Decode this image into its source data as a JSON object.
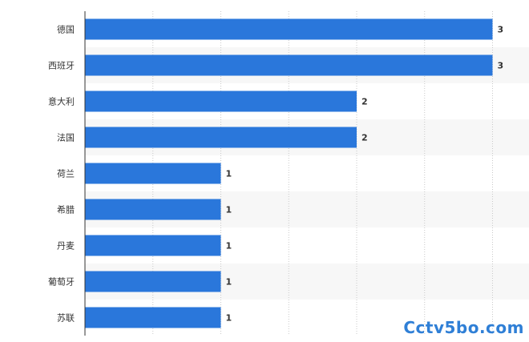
{
  "chart_data": {
    "type": "bar",
    "orientation": "horizontal",
    "categories": [
      "德国",
      "西班牙",
      "意大利",
      "法国",
      "荷兰",
      "希腊",
      "丹麦",
      "葡萄牙",
      "苏联"
    ],
    "values": [
      3,
      3,
      2,
      2,
      1,
      1,
      1,
      1,
      1
    ],
    "value_labels": [
      "3",
      "3",
      "2",
      "2",
      "1",
      "1",
      "1",
      "1",
      "1"
    ],
    "title": "",
    "xlabel": "",
    "ylabel": "",
    "xlim": [
      0,
      3.2
    ],
    "grid": true,
    "legend": "none",
    "bar_color": "#2a77db",
    "alt_row_color": "#f7f7f7"
  },
  "watermark": {
    "text": "Cctv5bo.com",
    "color": "#2f7fd6"
  }
}
